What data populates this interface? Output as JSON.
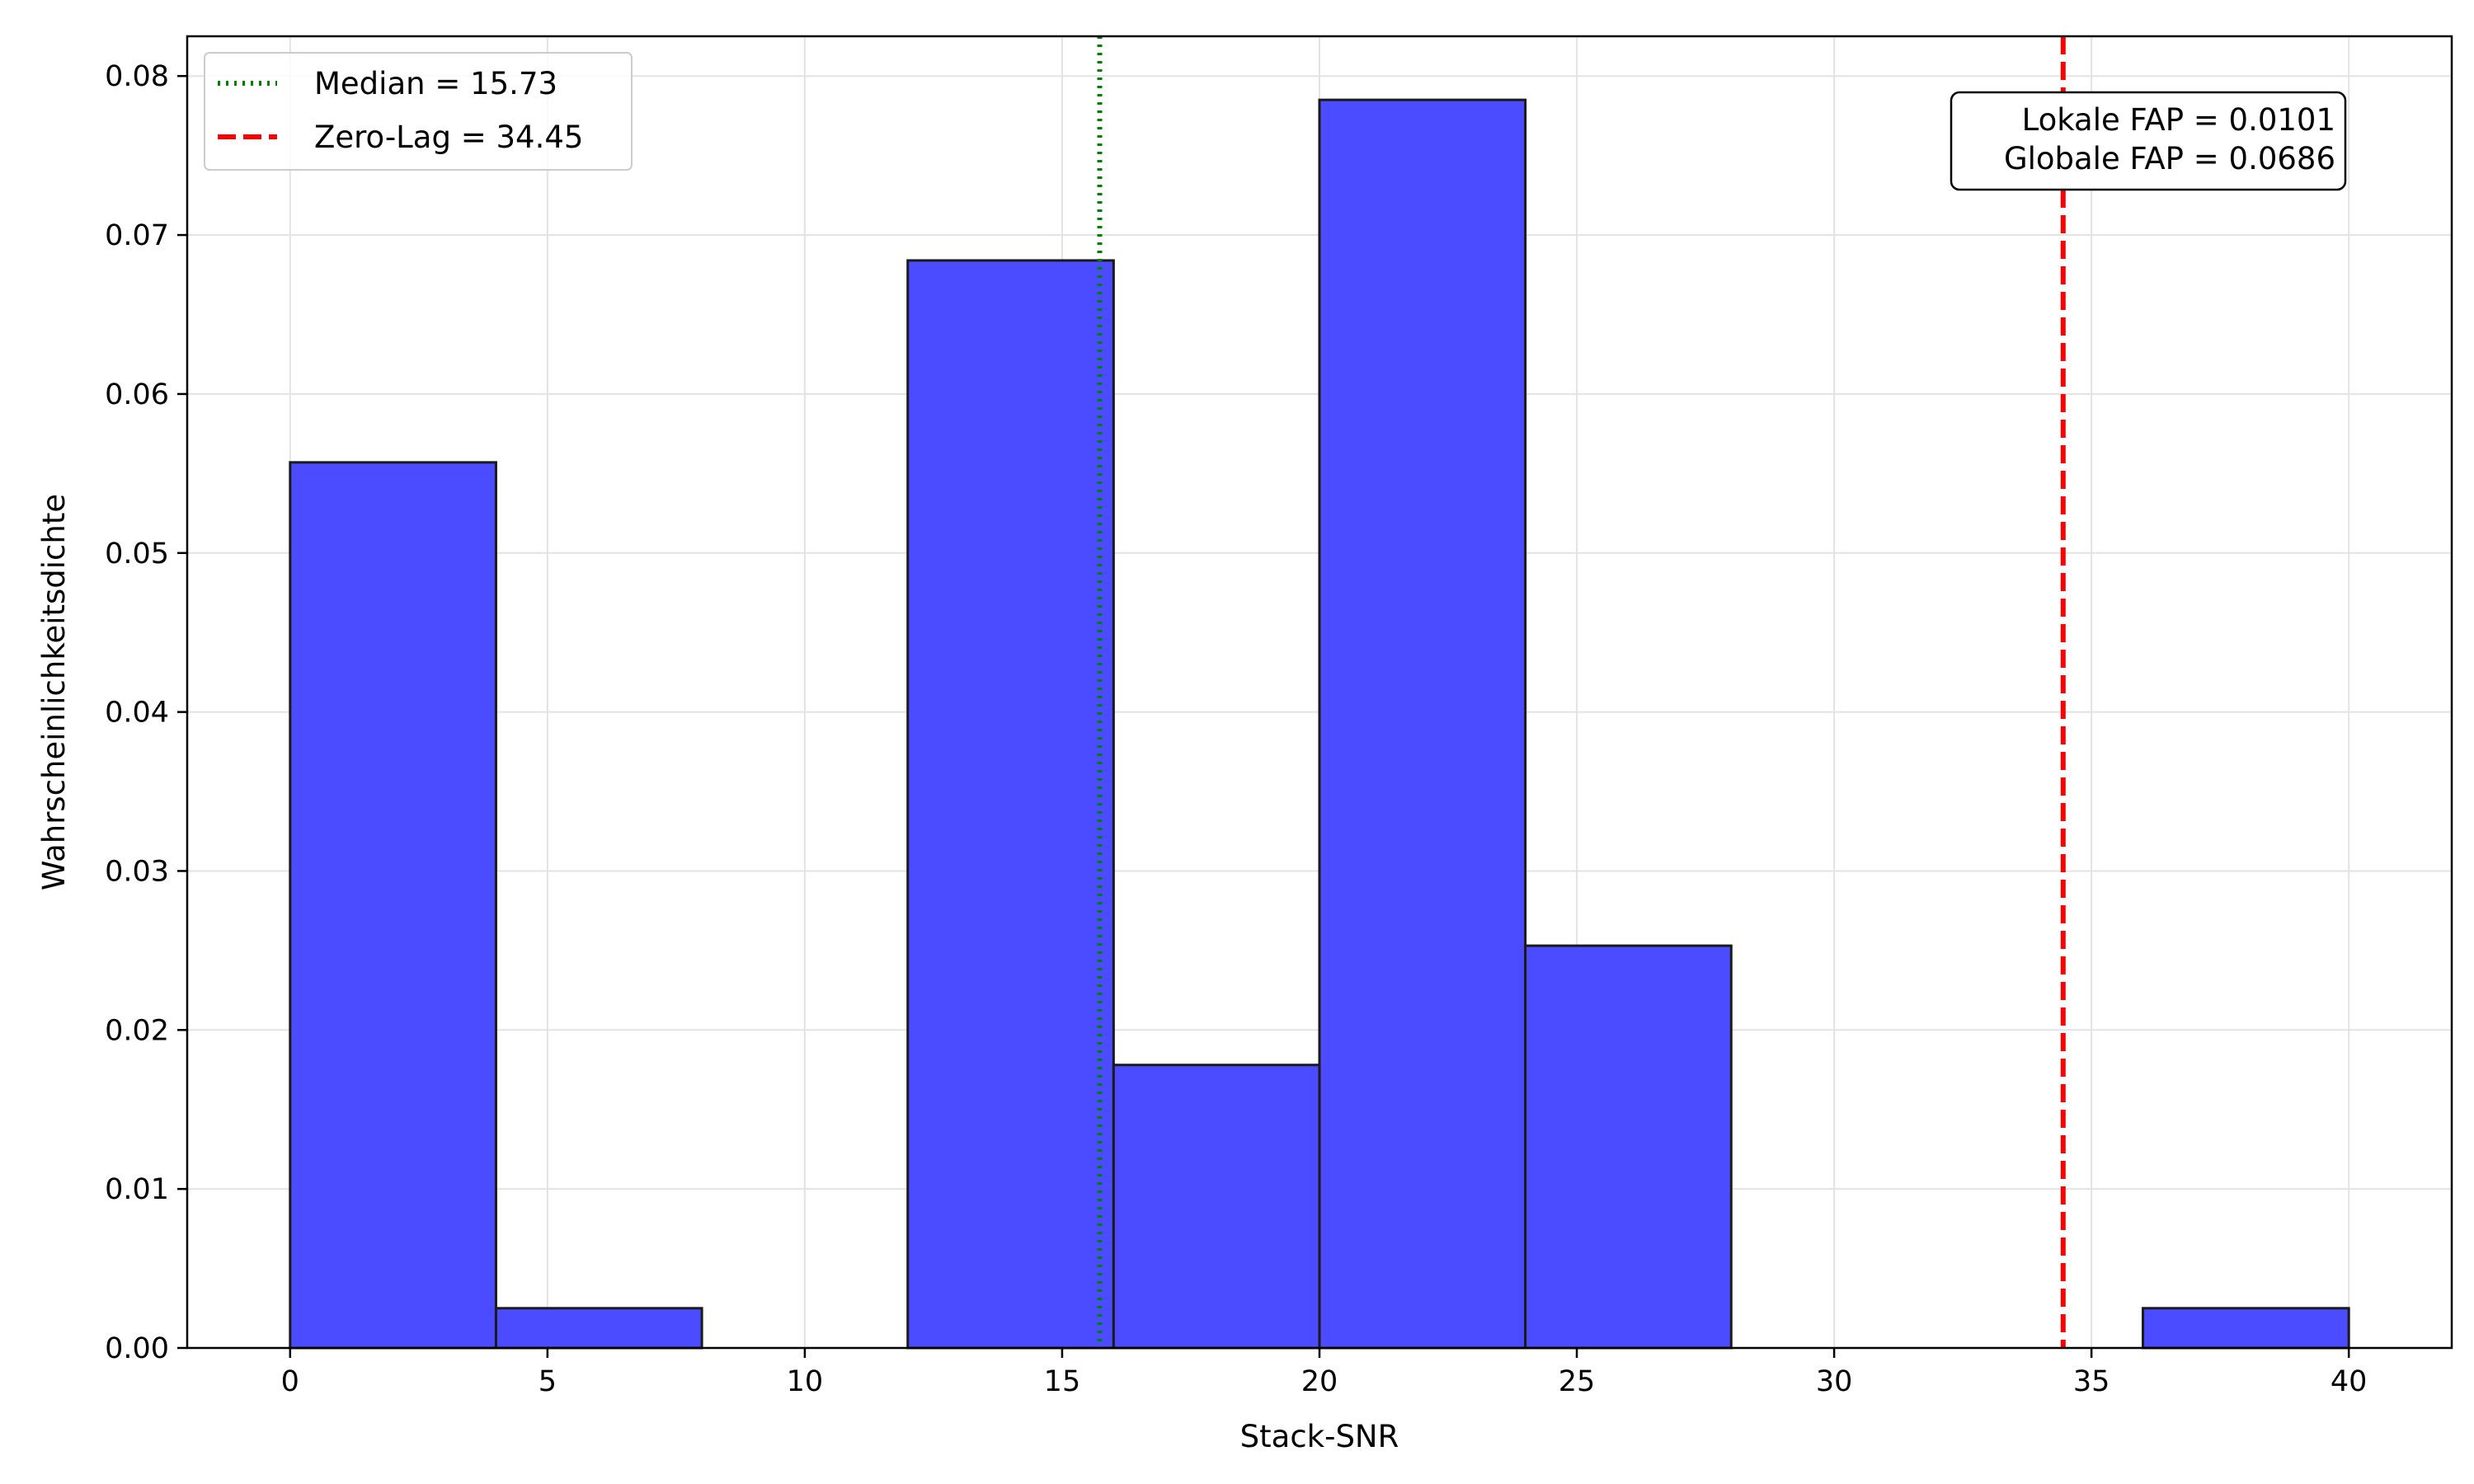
{
  "chart_data": {
    "type": "bar",
    "title": "",
    "xlabel": "Stack-SNR",
    "ylabel": "Wahrscheinlichkeitsdichte",
    "xlim": [
      -2,
      42
    ],
    "ylim": [
      0,
      0.0825
    ],
    "x_ticks": [
      0,
      5,
      10,
      15,
      20,
      25,
      30,
      35,
      40
    ],
    "x_tick_labels": [
      "0",
      "5",
      "10",
      "15",
      "20",
      "25",
      "30",
      "35",
      "40"
    ],
    "y_ticks": [
      0,
      0.01,
      0.02,
      0.03,
      0.04,
      0.05,
      0.06,
      0.07,
      0.08
    ],
    "y_tick_labels": [
      "0.00",
      "0.01",
      "0.02",
      "0.03",
      "0.04",
      "0.05",
      "0.06",
      "0.07",
      "0.08"
    ],
    "grid": true,
    "bar_color": "#4b4bff",
    "bar_edge_color": "#1a1a1a",
    "bins": [
      {
        "x0": 0,
        "x1": 4,
        "value": 0.0557
      },
      {
        "x0": 4,
        "x1": 8,
        "value": 0.0025
      },
      {
        "x0": 8,
        "x1": 12,
        "value": 0
      },
      {
        "x0": 12,
        "x1": 16,
        "value": 0.0684
      },
      {
        "x0": 16,
        "x1": 20,
        "value": 0.0178
      },
      {
        "x0": 20,
        "x1": 24,
        "value": 0.0785
      },
      {
        "x0": 24,
        "x1": 28,
        "value": 0.0253
      },
      {
        "x0": 28,
        "x1": 32,
        "value": 0
      },
      {
        "x0": 32,
        "x1": 36,
        "value": 0
      },
      {
        "x0": 36,
        "x1": 40,
        "value": 0.0025
      }
    ],
    "vlines": [
      {
        "name": "Median = 15.73",
        "x": 15.73,
        "color": "#008000",
        "style": "dotted"
      },
      {
        "name": "Zero-Lag = 34.45",
        "x": 34.45,
        "color": "#ff0000",
        "style": "dashed"
      }
    ],
    "legend": {
      "position": "top-left",
      "entries": [
        "Median = 15.73",
        "Zero-Lag = 34.45"
      ]
    },
    "annotation": {
      "lines": [
        "Lokale FAP = 0.0101",
        "Globale FAP = 0.0686"
      ],
      "position": "top-right"
    }
  }
}
